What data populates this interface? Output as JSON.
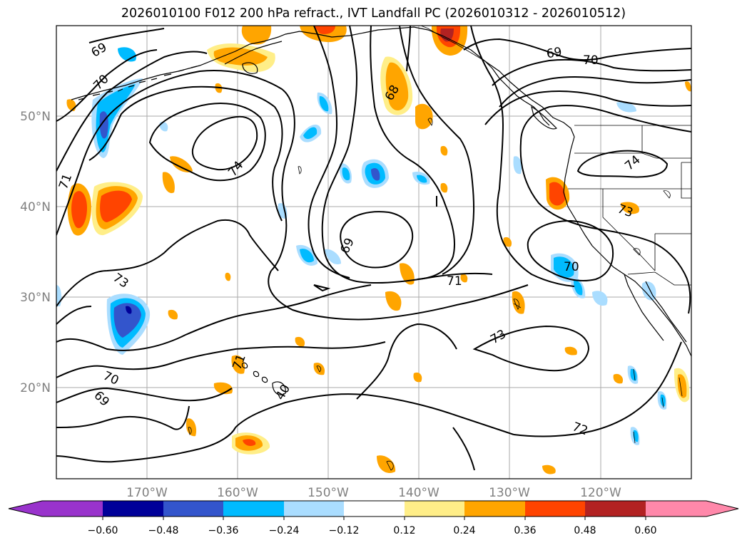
{
  "title": "2026010100 F012 200 hPa refract., IVT Landfall PC (2026010312 - 2026010512)",
  "colors": {
    "land_outline": "#000000",
    "grid": "#aaaaaa",
    "neg": [
      "#9933cc",
      "#000099",
      "#3355cc",
      "#00bbff",
      "#aaddff"
    ],
    "pos": [
      "#ffee88",
      "#ffa500",
      "#ff4400",
      "#b22222",
      "#ff88aa"
    ]
  },
  "map": {
    "lat_labels": [
      "50°N",
      "40°N",
      "30°N",
      "20°N"
    ],
    "lon_labels": [
      "170°W",
      "160°W",
      "150°W",
      "140°W",
      "130°W",
      "120°W"
    ]
  },
  "colorbar": {
    "ticks": [
      "−0.60",
      "−0.48",
      "−0.36",
      "−0.24",
      "−0.12",
      "0.12",
      "0.24",
      "0.36",
      "0.48",
      "0.60"
    ]
  },
  "contour_labels": [
    "69",
    "70",
    "71",
    "74",
    "73",
    "69",
    "68",
    "69",
    "70",
    "74",
    "73",
    "70",
    "71",
    "73",
    "72",
    "71",
    "70",
    "69",
    "40"
  ]
}
